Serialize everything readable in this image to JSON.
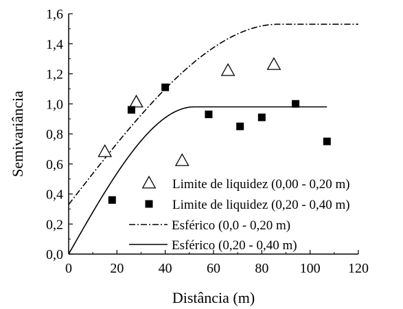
{
  "chart_data": {
    "type": "scatter",
    "xlabel": "Distância (m)",
    "ylabel": "Semivariância",
    "xlim": [
      0,
      120
    ],
    "ylim": [
      0,
      1.6
    ],
    "xticks": [
      0,
      20,
      40,
      60,
      80,
      100,
      120
    ],
    "xtick_labels": [
      "0",
      "20",
      "40",
      "60",
      "80",
      "100",
      "120"
    ],
    "yticks": [
      0,
      0.2,
      0.4,
      0.6,
      0.8,
      1.0,
      1.2,
      1.4,
      1.6
    ],
    "ytick_labels": [
      "0,0",
      "0,2",
      "0,4",
      "0,6",
      "0,8",
      "1,0",
      "1,2",
      "1,4",
      "1,6"
    ],
    "grid": false,
    "legend_position": "bottom-right",
    "series": [
      {
        "name": "Limite de liquidez (0,00 - 0,20 m)",
        "kind": "points",
        "marker": "open-triangle",
        "x": [
          15,
          28,
          47,
          66,
          85
        ],
        "y": [
          0.68,
          1.01,
          0.62,
          1.22,
          1.26
        ]
      },
      {
        "name": "Limite de liquidez (0,20 - 0,40 m)",
        "kind": "points",
        "marker": "filled-square",
        "x": [
          18,
          26,
          40,
          58,
          71,
          80,
          94,
          107
        ],
        "y": [
          0.36,
          0.96,
          1.11,
          0.93,
          0.85,
          0.91,
          1.0,
          0.75
        ]
      },
      {
        "name": "Esférico (0,0 - 0,20 m)",
        "kind": "spherical-model",
        "dash": "dash-dot",
        "nugget": 0.33,
        "sill": 1.53,
        "range": 87,
        "x_max": 120
      },
      {
        "name": "Esférico (0,20 - 0,40 m)",
        "kind": "spherical-model",
        "dash": "solid",
        "nugget": 0.0,
        "sill": 0.98,
        "range": 52,
        "x_max": 107
      }
    ]
  }
}
